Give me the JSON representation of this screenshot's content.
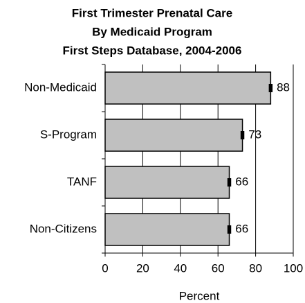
{
  "chart_data": {
    "type": "barh",
    "title": [
      "First Trimester Prenatal Care",
      "By Medicaid Program",
      "First Steps Database, 2004-2006"
    ],
    "categories": [
      "Non-Medicaid",
      "S-Program",
      "TANF",
      "Non-Citizens"
    ],
    "values": [
      88,
      73,
      66,
      66
    ],
    "errors": [
      1,
      1,
      1,
      1
    ],
    "color": "#c0c0c0",
    "xlabel": "Percent",
    "xlim": [
      0,
      100
    ],
    "xticks": [
      0,
      20,
      40,
      60,
      80,
      100
    ],
    "grid": true
  }
}
